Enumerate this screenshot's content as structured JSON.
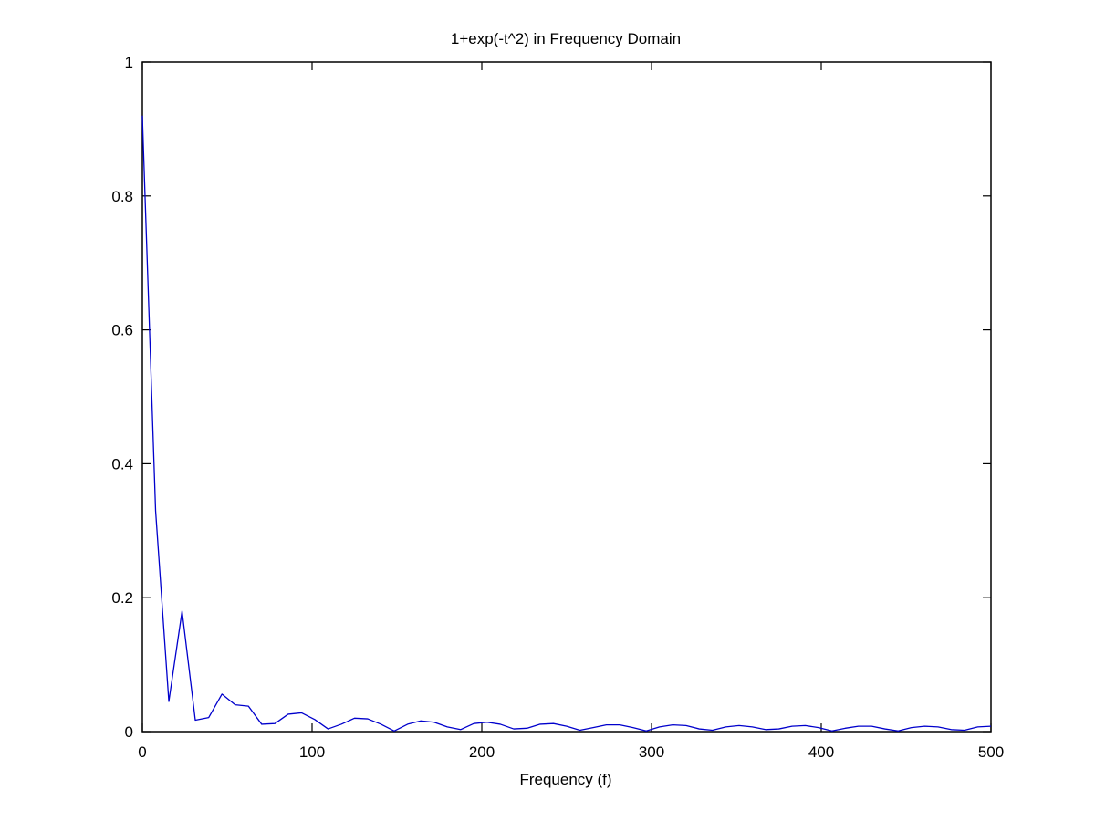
{
  "chart_data": {
    "type": "line",
    "title": "1+exp(-t^2) in Frequency Domain",
    "xlabel": "Frequency (f)",
    "ylabel": "",
    "xlim": [
      0,
      500
    ],
    "ylim": [
      0,
      1
    ],
    "xticks": [
      0,
      100,
      200,
      300,
      400,
      500
    ],
    "xtick_labels": [
      "0",
      "100",
      "200",
      "300",
      "400",
      "500"
    ],
    "yticks": [
      0,
      0.2,
      0.4,
      0.6,
      0.8,
      1
    ],
    "ytick_labels": [
      "0",
      "0.2",
      "0.4",
      "0.6",
      "0.8",
      "1"
    ],
    "grid": false,
    "line_color": "#0000cc",
    "series": [
      {
        "x": [
          0,
          7.8,
          15.6,
          23.4,
          31.2,
          39.1,
          46.9,
          54.7,
          62.5,
          70.3,
          78.1,
          85.9,
          93.8,
          101.6,
          109.4,
          117.2,
          125,
          132.8,
          140.6,
          148.4,
          156.3,
          164.1,
          171.9,
          179.7,
          187.5,
          195.3,
          203.1,
          210.9,
          218.8,
          226.6,
          234.4,
          242.2,
          250,
          257.8,
          265.6,
          273.4,
          281.3,
          289.1,
          296.9,
          304.7,
          312.5,
          320.3,
          328.1,
          335.9,
          343.8,
          351.6,
          359.4,
          367.2,
          375,
          382.8,
          390.6,
          398.4,
          406.3,
          414.1,
          421.9,
          429.7,
          437.5,
          445.3,
          453.1,
          460.9,
          468.8,
          476.6,
          484.4,
          492.2,
          500
        ],
        "y": [
          0.92,
          0.33,
          0.045,
          0.18,
          0.017,
          0.021,
          0.056,
          0.04,
          0.038,
          0.011,
          0.012,
          0.026,
          0.028,
          0.018,
          0.004,
          0.011,
          0.02,
          0.019,
          0.011,
          0.001,
          0.011,
          0.016,
          0.014,
          0.007,
          0.003,
          0.012,
          0.014,
          0.011,
          0.004,
          0.005,
          0.011,
          0.012,
          0.008,
          0.002,
          0.006,
          0.01,
          0.01,
          0.006,
          0.001,
          0.007,
          0.01,
          0.009,
          0.004,
          0.002,
          0.007,
          0.009,
          0.007,
          0.003,
          0.004,
          0.008,
          0.009,
          0.006,
          0.001,
          0.005,
          0.008,
          0.008,
          0.004,
          0.001,
          0.006,
          0.008,
          0.007,
          0.003,
          0.002,
          0.007,
          0.008
        ]
      }
    ]
  }
}
